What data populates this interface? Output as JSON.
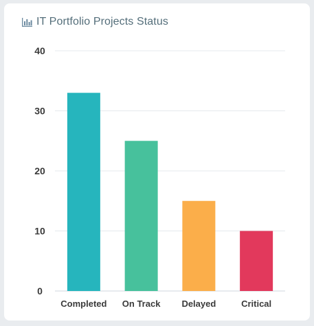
{
  "header": {
    "title": "IT Portfolio Projects Status",
    "icon": "bar-chart-icon"
  },
  "chart_data": {
    "type": "bar",
    "title": "IT Portfolio Projects Status",
    "categories": [
      "Completed",
      "On Track",
      "Delayed",
      "Critical"
    ],
    "values": [
      33,
      25,
      15,
      10
    ],
    "colors": [
      "#26b5bd",
      "#47c19c",
      "#fbae4a",
      "#e2395c"
    ],
    "ylim": [
      0,
      40
    ],
    "yticks": [
      0,
      10,
      20,
      30,
      40
    ],
    "grid": true,
    "legend": "none",
    "xlabel": "",
    "ylabel": ""
  }
}
